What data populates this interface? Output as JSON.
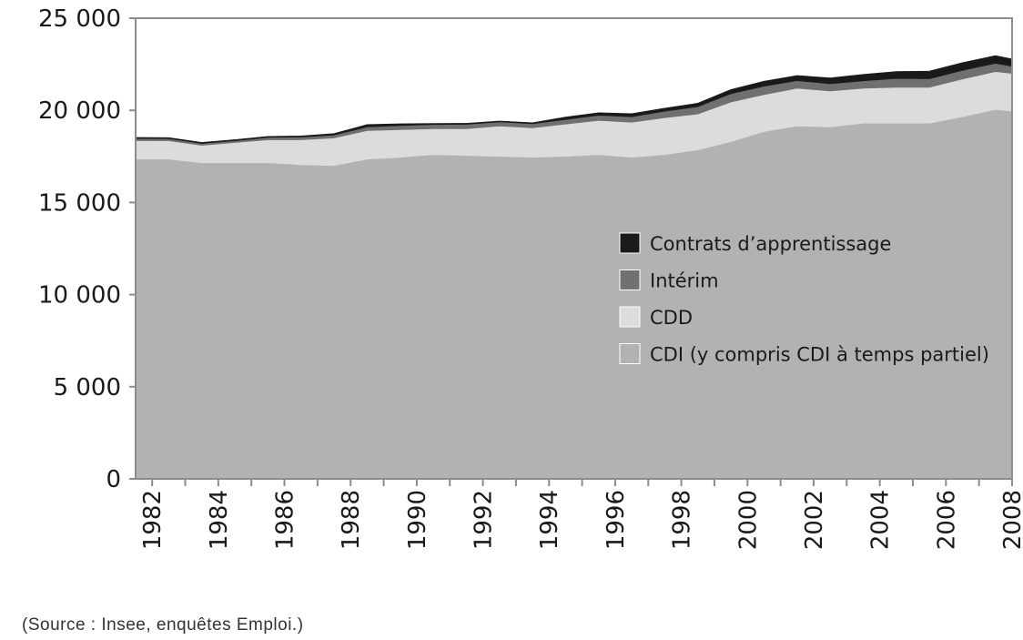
{
  "chart_data": {
    "type": "area",
    "stacked": true,
    "title": "",
    "xlabel": "",
    "ylabel": "",
    "ylim": [
      0,
      25000
    ],
    "yticks": [
      0,
      5000,
      10000,
      15000,
      20000,
      25000
    ],
    "ytick_labels": [
      "0",
      "5 000",
      "10 000",
      "15 000",
      "20 000",
      "25 000"
    ],
    "xlim": [
      1981.5,
      2008
    ],
    "xticks": [
      1982,
      1984,
      1986,
      1988,
      1990,
      1992,
      1994,
      1996,
      1998,
      2000,
      2002,
      2004,
      2006,
      2008
    ],
    "xtick_labels": [
      "1982",
      "1984",
      "1986",
      "1988",
      "1990",
      "1992",
      "1994",
      "1996",
      "1998",
      "2000",
      "2002",
      "2004",
      "2006",
      "2008"
    ],
    "x": [
      1981.5,
      1982.5,
      1983.5,
      1984.5,
      1985.5,
      1986.5,
      1987.5,
      1988.5,
      1989.5,
      1990.5,
      1991.5,
      1992.5,
      1993.5,
      1994.5,
      1995.5,
      1996.5,
      1997.5,
      1998.5,
      1999.5,
      2000.5,
      2001.5,
      2002.5,
      2003.5,
      2004.5,
      2005.5,
      2006.5,
      2007.5,
      2008
    ],
    "series": [
      {
        "name": "CDI (y compris CDI à temps partiel)",
        "color": "#b2b2b2",
        "values": [
          17350,
          17350,
          17150,
          17150,
          17150,
          17050,
          17000,
          17350,
          17450,
          17600,
          17550,
          17500,
          17450,
          17500,
          17600,
          17450,
          17600,
          17850,
          18300,
          18850,
          19150,
          19100,
          19300,
          19300,
          19300,
          19650,
          20050,
          19950
        ]
      },
      {
        "name": "CDD",
        "color": "#dcdcdc",
        "values": [
          1000,
          1000,
          950,
          1100,
          1250,
          1350,
          1500,
          1550,
          1500,
          1400,
          1450,
          1650,
          1600,
          1750,
          1850,
          1900,
          2000,
          1950,
          2150,
          2000,
          2050,
          1950,
          1900,
          1950,
          1950,
          2050,
          2050,
          2050
        ]
      },
      {
        "name": "Intérim",
        "color": "#707070",
        "values": [
          120,
          110,
          100,
          100,
          130,
          150,
          160,
          200,
          220,
          230,
          240,
          220,
          220,
          250,
          280,
          300,
          350,
          400,
          450,
          460,
          410,
          390,
          400,
          480,
          460,
          470,
          450,
          390
        ]
      },
      {
        "name": "Contrats d’apprentissage",
        "color": "#1a1a1a",
        "values": [
          60,
          60,
          60,
          60,
          60,
          60,
          80,
          130,
          100,
          60,
          60,
          50,
          60,
          140,
          140,
          170,
          170,
          190,
          230,
          270,
          280,
          320,
          350,
          380,
          420,
          420,
          420,
          400
        ]
      }
    ],
    "legend": {
      "position": "right",
      "order": [
        "Contrats d’apprentissage",
        "Intérim",
        "CDD",
        "CDI (y compris CDI à temps partiel)"
      ]
    }
  },
  "note": "(Source : Insee, enquêtes Emploi.)"
}
